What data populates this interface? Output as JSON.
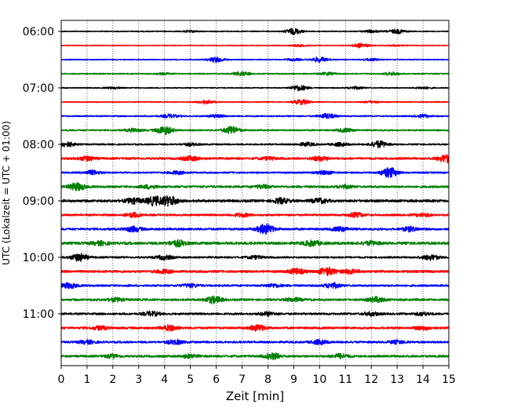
{
  "chart_data": {
    "type": "line",
    "xlabel": "Zeit  [min]",
    "ylabel": "UTC (Lokalzeit = UTC + 01:00)",
    "xlim": [
      0,
      15
    ],
    "x_ticks": [
      0,
      1,
      2,
      3,
      4,
      5,
      6,
      7,
      8,
      9,
      10,
      11,
      12,
      13,
      14,
      15
    ],
    "grid": "vertical dotted at each minute",
    "trace_interval_minutes": 15,
    "y_tick_labels": [
      {
        "label": "06:00",
        "trace_index": 0
      },
      {
        "label": "07:00",
        "trace_index": 4
      },
      {
        "label": "08:00",
        "trace_index": 8
      },
      {
        "label": "09:00",
        "trace_index": 12
      },
      {
        "label": "10:00",
        "trace_index": 16
      },
      {
        "label": "11:00",
        "trace_index": 20
      }
    ],
    "color_cycle": [
      "#000000",
      "#ff0000",
      "#0000ff",
      "#008000"
    ],
    "series": [
      {
        "start": "06:00",
        "color": "#000000",
        "noise": 0.6,
        "bursts": [
          [
            9.0,
            3.5
          ],
          [
            13.0,
            2.5
          ],
          [
            12.0,
            1.5
          ],
          [
            5.0,
            1.0
          ]
        ]
      },
      {
        "start": "06:15",
        "color": "#ff0000",
        "noise": 0.5,
        "bursts": [
          [
            11.6,
            2.5
          ],
          [
            9.2,
            1.2
          ],
          [
            13.0,
            1.0
          ]
        ]
      },
      {
        "start": "06:30",
        "color": "#0000ff",
        "noise": 0.6,
        "bursts": [
          [
            6.0,
            3.0
          ],
          [
            10.0,
            3.0
          ],
          [
            9.0,
            1.2
          ],
          [
            12.0,
            1.2
          ]
        ]
      },
      {
        "start": "06:45",
        "color": "#008000",
        "noise": 0.7,
        "bursts": [
          [
            7.0,
            2.5
          ],
          [
            10.3,
            1.5
          ],
          [
            12.8,
            1.8
          ],
          [
            4.0,
            1.0
          ]
        ]
      },
      {
        "start": "07:00",
        "color": "#000000",
        "noise": 0.6,
        "bursts": [
          [
            9.2,
            3.5
          ],
          [
            11.4,
            1.5
          ],
          [
            14.0,
            1.2
          ],
          [
            2.0,
            1.0
          ]
        ]
      },
      {
        "start": "07:15",
        "color": "#ff0000",
        "noise": 0.6,
        "bursts": [
          [
            5.6,
            2.0
          ],
          [
            9.3,
            3.0
          ],
          [
            12.0,
            1.2
          ]
        ]
      },
      {
        "start": "07:30",
        "color": "#0000ff",
        "noise": 0.8,
        "bursts": [
          [
            4.2,
            2.0
          ],
          [
            10.3,
            3.0
          ],
          [
            14.0,
            1.5
          ],
          [
            6.0,
            1.5
          ]
        ]
      },
      {
        "start": "07:45",
        "color": "#008000",
        "noise": 0.9,
        "bursts": [
          [
            4.0,
            5.0
          ],
          [
            6.6,
            4.5
          ],
          [
            2.8,
            2.0
          ],
          [
            11.0,
            2.0
          ]
        ]
      },
      {
        "start": "08:00",
        "color": "#000000",
        "noise": 0.9,
        "bursts": [
          [
            0.2,
            3.0
          ],
          [
            12.3,
            4.0
          ],
          [
            9.5,
            2.0
          ],
          [
            5.0,
            1.5
          ],
          [
            10.8,
            2.0
          ]
        ]
      },
      {
        "start": "08:15",
        "color": "#ff0000",
        "noise": 1.3,
        "bursts": [
          [
            1.0,
            2.5
          ],
          [
            5.0,
            2.5
          ],
          [
            10.0,
            2.5
          ],
          [
            14.9,
            4.5
          ],
          [
            8.0,
            1.5
          ]
        ]
      },
      {
        "start": "08:30",
        "color": "#0000ff",
        "noise": 1.0,
        "bursts": [
          [
            12.7,
            6.0
          ],
          [
            1.2,
            2.5
          ],
          [
            4.5,
            1.8
          ],
          [
            10.2,
            2.0
          ]
        ]
      },
      {
        "start": "08:45",
        "color": "#008000",
        "noise": 1.3,
        "bursts": [
          [
            0.6,
            4.5
          ],
          [
            3.4,
            2.0
          ],
          [
            7.8,
            2.0
          ],
          [
            11.0,
            1.8
          ]
        ]
      },
      {
        "start": "09:00",
        "color": "#000000",
        "noise": 1.5,
        "bursts": [
          [
            3.6,
            5.0
          ],
          [
            4.2,
            5.5
          ],
          [
            2.8,
            3.0
          ],
          [
            8.5,
            3.0
          ],
          [
            10.0,
            2.5
          ]
        ]
      },
      {
        "start": "09:15",
        "color": "#ff0000",
        "noise": 1.2,
        "bursts": [
          [
            2.8,
            2.5
          ],
          [
            7.0,
            2.0
          ],
          [
            11.4,
            2.5
          ],
          [
            14.0,
            1.8
          ]
        ]
      },
      {
        "start": "09:30",
        "color": "#0000ff",
        "noise": 1.3,
        "bursts": [
          [
            7.9,
            6.0
          ],
          [
            2.8,
            3.0
          ],
          [
            10.8,
            2.5
          ],
          [
            13.5,
            2.5
          ]
        ]
      },
      {
        "start": "09:45",
        "color": "#008000",
        "noise": 1.6,
        "bursts": [
          [
            4.5,
            3.5
          ],
          [
            9.7,
            3.0
          ],
          [
            1.5,
            2.0
          ],
          [
            12.0,
            2.0
          ]
        ]
      },
      {
        "start": "10:00",
        "color": "#000000",
        "noise": 1.1,
        "bursts": [
          [
            0.7,
            4.5
          ],
          [
            4.0,
            2.5
          ],
          [
            14.3,
            3.0
          ],
          [
            7.5,
            1.8
          ]
        ]
      },
      {
        "start": "10:15",
        "color": "#ff0000",
        "noise": 1.4,
        "bursts": [
          [
            10.3,
            4.5
          ],
          [
            9.1,
            3.0
          ],
          [
            11.2,
            2.5
          ],
          [
            4.0,
            2.0
          ]
        ]
      },
      {
        "start": "10:30",
        "color": "#0000ff",
        "noise": 1.2,
        "bursts": [
          [
            0.3,
            3.0
          ],
          [
            10.5,
            3.0
          ],
          [
            5.0,
            2.0
          ],
          [
            8.2,
            2.0
          ]
        ]
      },
      {
        "start": "10:45",
        "color": "#008000",
        "noise": 1.3,
        "bursts": [
          [
            5.9,
            4.0
          ],
          [
            12.2,
            3.0
          ],
          [
            2.1,
            2.0
          ],
          [
            9.0,
            2.0
          ]
        ]
      },
      {
        "start": "11:00",
        "color": "#000000",
        "noise": 1.2,
        "bursts": [
          [
            3.5,
            2.5
          ],
          [
            12.0,
            2.0
          ],
          [
            8.0,
            2.0
          ],
          [
            14.0,
            1.8
          ]
        ]
      },
      {
        "start": "11:15",
        "color": "#ff0000",
        "noise": 1.3,
        "bursts": [
          [
            4.2,
            3.0
          ],
          [
            7.6,
            3.5
          ],
          [
            14.0,
            2.0
          ],
          [
            1.5,
            2.0
          ]
        ]
      },
      {
        "start": "11:30",
        "color": "#0000ff",
        "noise": 1.2,
        "bursts": [
          [
            4.4,
            2.5
          ],
          [
            10.0,
            2.5
          ],
          [
            1.0,
            2.0
          ],
          [
            13.0,
            1.8
          ]
        ]
      },
      {
        "start": "11:45",
        "color": "#008000",
        "noise": 1.3,
        "bursts": [
          [
            8.2,
            3.5
          ],
          [
            10.8,
            2.5
          ],
          [
            5.0,
            2.0
          ],
          [
            2.0,
            1.8
          ]
        ]
      }
    ]
  }
}
